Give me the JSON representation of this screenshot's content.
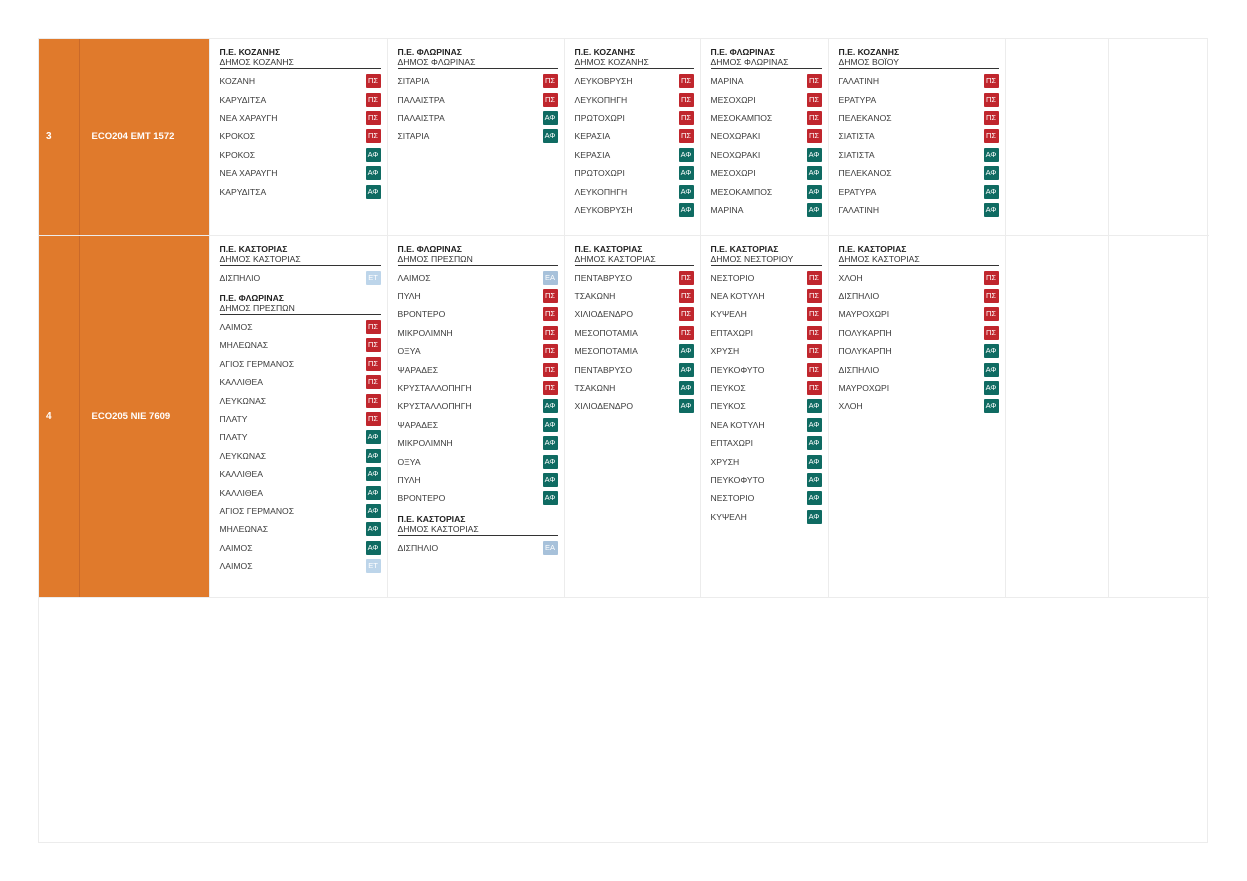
{
  "colors": {
    "orange": "#e07a2c",
    "ps": "#c0262d",
    "af": "#0f6b62",
    "et": "#bdd5ea",
    "ea": "#a7c1da"
  },
  "rows": [
    {
      "num": "3",
      "code": "ECO204  EMT 1572",
      "cells": [
        [
          {
            "pe": "Π.Ε. ΚΟΖΑΝΗΣ",
            "dimos": "ΔΗΜΟΣ ΚΟΖΑΝΗΣ",
            "items": [
              {
                "name": "ΚΟΖΑΝΗ",
                "tag": "ΠΣ"
              },
              {
                "name": "ΚΑΡΥΔΙΤΣΑ",
                "tag": "ΠΣ"
              },
              {
                "name": "ΝΕΑ ΧΑΡΑΥΓΗ",
                "tag": "ΠΣ"
              },
              {
                "name": "ΚΡΟΚΟΣ",
                "tag": "ΠΣ"
              },
              {
                "name": "ΚΡΟΚΟΣ",
                "tag": "ΑΦ"
              },
              {
                "name": "ΝΕΑ ΧΑΡΑΥΓΗ",
                "tag": "ΑΦ"
              },
              {
                "name": "ΚΑΡΥΔΙΤΣΑ",
                "tag": "ΑΦ"
              }
            ]
          }
        ],
        [
          {
            "pe": "Π.Ε. ΦΛΩΡΙΝΑΣ",
            "dimos": "ΔΗΜΟΣ ΦΛΩΡΙΝΑΣ",
            "items": [
              {
                "name": "ΣΙΤΑΡΙΑ",
                "tag": "ΠΣ"
              },
              {
                "name": "ΠΑΛΑΙΣΤΡΑ",
                "tag": "ΠΣ"
              },
              {
                "name": "ΠΑΛΑΙΣΤΡΑ",
                "tag": "ΑΦ"
              },
              {
                "name": "ΣΙΤΑΡΙΑ",
                "tag": "ΑΦ"
              }
            ]
          }
        ],
        [
          {
            "pe": "Π.Ε. ΚΟΖΑΝΗΣ",
            "dimos": "ΔΗΜΟΣ ΚΟΖΑΝΗΣ",
            "items": [
              {
                "name": "ΛΕΥΚΟΒΡΥΣΗ",
                "tag": "ΠΣ"
              },
              {
                "name": "ΛΕΥΚΟΠΗΓΗ",
                "tag": "ΠΣ"
              },
              {
                "name": "ΠΡΩΤΟΧΩΡΙ",
                "tag": "ΠΣ"
              },
              {
                "name": "ΚΕΡΑΣΙΑ",
                "tag": "ΠΣ"
              },
              {
                "name": "ΚΕΡΑΣΙΑ",
                "tag": "ΑΦ"
              },
              {
                "name": "ΠΡΩΤΟΧΩΡΙ",
                "tag": "ΑΦ"
              },
              {
                "name": "ΛΕΥΚΟΠΗΓΗ",
                "tag": "ΑΦ"
              },
              {
                "name": "ΛΕΥΚΟΒΡΥΣΗ",
                "tag": "ΑΦ"
              }
            ]
          }
        ],
        [
          {
            "pe": "Π.Ε. ΦΛΩΡΙΝΑΣ",
            "dimos": "ΔΗΜΟΣ ΦΛΩΡΙΝΑΣ",
            "items": [
              {
                "name": "ΜΑΡΙΝΑ",
                "tag": "ΠΣ"
              },
              {
                "name": "ΜΕΣΟΧΩΡΙ",
                "tag": "ΠΣ"
              },
              {
                "name": "ΜΕΣΟΚΑΜΠΟΣ",
                "tag": "ΠΣ"
              },
              {
                "name": "ΝΕΟΧΩΡΑΚΙ",
                "tag": "ΠΣ"
              },
              {
                "name": "ΝΕΟΧΩΡΑΚΙ",
                "tag": "ΑΦ"
              },
              {
                "name": "ΜΕΣΟΧΩΡΙ",
                "tag": "ΑΦ"
              },
              {
                "name": "ΜΕΣΟΚΑΜΠΟΣ",
                "tag": "ΑΦ"
              },
              {
                "name": "ΜΑΡΙΝΑ",
                "tag": "ΑΦ"
              }
            ]
          }
        ],
        [
          {
            "pe": "Π.Ε. ΚΟΖΑΝΗΣ",
            "dimos": "ΔΗΜΟΣ ΒΟΪΟΥ",
            "items": [
              {
                "name": "ΓΑΛΑΤΙΝΗ",
                "tag": "ΠΣ"
              },
              {
                "name": "ΕΡΑΤΥΡΑ",
                "tag": "ΠΣ"
              },
              {
                "name": "ΠΕΛΕΚΑΝΟΣ",
                "tag": "ΠΣ"
              },
              {
                "name": "ΣΙΑΤΙΣΤΑ",
                "tag": "ΠΣ"
              },
              {
                "name": "ΣΙΑΤΙΣΤΑ",
                "tag": "ΑΦ"
              },
              {
                "name": "ΠΕΛΕΚΑΝΟΣ",
                "tag": "ΑΦ"
              },
              {
                "name": "ΕΡΑΤΥΡΑ",
                "tag": "ΑΦ"
              },
              {
                "name": "ΓΑΛΑΤΙΝΗ",
                "tag": "ΑΦ"
              }
            ]
          }
        ],
        [],
        []
      ]
    },
    {
      "num": "4",
      "code": "ECO205  NIE 7609",
      "cells": [
        [
          {
            "pe": "Π.Ε. ΚΑΣΤΟΡΙΑΣ",
            "dimos": "ΔΗΜΟΣ ΚΑΣΤΟΡΙΑΣ",
            "items": [
              {
                "name": "ΔΙΣΠΗΛΙΟ",
                "tag": "ΕΤ"
              }
            ]
          },
          {
            "pe": "Π.Ε. ΦΛΩΡΙΝΑΣ",
            "dimos": "ΔΗΜΟΣ ΠΡΕΣΠΩΝ",
            "items": [
              {
                "name": "ΛΑΙΜΟΣ",
                "tag": "ΠΣ"
              },
              {
                "name": "ΜΗΛΕΩΝΑΣ",
                "tag": "ΠΣ"
              },
              {
                "name": "ΑΓΙΟΣ ΓΕΡΜΑΝΟΣ",
                "tag": "ΠΣ"
              },
              {
                "name": "ΚΑΛΛΙΘΕΑ",
                "tag": "ΠΣ"
              },
              {
                "name": "ΛΕΥΚΩΝΑΣ",
                "tag": "ΠΣ"
              },
              {
                "name": "ΠΛΑΤΥ",
                "tag": "ΠΣ"
              },
              {
                "name": "ΠΛΑΤΥ",
                "tag": "ΑΦ"
              },
              {
                "name": "ΛΕΥΚΩΝΑΣ",
                "tag": "ΑΦ"
              },
              {
                "name": "ΚΑΛΛΙΘΕΑ",
                "tag": "ΑΦ"
              },
              {
                "name": "ΚΑΛΛΙΘΕΑ",
                "tag": "ΑΦ"
              },
              {
                "name": "ΑΓΙΟΣ ΓΕΡΜΑΝΟΣ",
                "tag": "ΑΦ"
              },
              {
                "name": "ΜΗΛΕΩΝΑΣ",
                "tag": "ΑΦ"
              },
              {
                "name": "ΛΑΙΜΟΣ",
                "tag": "ΑΦ"
              },
              {
                "name": "ΛΑΙΜΟΣ",
                "tag": "ΕΤ"
              }
            ]
          }
        ],
        [
          {
            "pe": "Π.Ε. ΦΛΩΡΙΝΑΣ",
            "dimos": "ΔΗΜΟΣ ΠΡΕΣΠΩΝ",
            "items": [
              {
                "name": "ΛΑΙΜΟΣ",
                "tag": "ΕΑ"
              },
              {
                "name": "ΠΥΛΗ",
                "tag": "ΠΣ"
              },
              {
                "name": "ΒΡΟΝΤΕΡΟ",
                "tag": "ΠΣ"
              },
              {
                "name": "ΜΙΚΡΟΛΙΜΝΗ",
                "tag": "ΠΣ"
              },
              {
                "name": "ΟΞΥΑ",
                "tag": "ΠΣ"
              },
              {
                "name": "ΨΑΡΑΔΕΣ",
                "tag": "ΠΣ"
              },
              {
                "name": "ΚΡΥΣΤΑΛΛΟΠΗΓΗ",
                "tag": "ΠΣ"
              },
              {
                "name": "ΚΡΥΣΤΑΛΛΟΠΗΓΗ",
                "tag": "ΑΦ"
              },
              {
                "name": "ΨΑΡΑΔΕΣ",
                "tag": "ΑΦ"
              },
              {
                "name": "ΜΙΚΡΟΛΙΜΝΗ",
                "tag": "ΑΦ"
              },
              {
                "name": "ΟΞΥΑ",
                "tag": "ΑΦ"
              },
              {
                "name": "ΠΥΛΗ",
                "tag": "ΑΦ"
              },
              {
                "name": "ΒΡΟΝΤΕΡΟ",
                "tag": "ΑΦ"
              }
            ]
          },
          {
            "pe": "Π.Ε. ΚΑΣΤΟΡΙΑΣ",
            "dimos": "ΔΗΜΟΣ ΚΑΣΤΟΡΙΑΣ",
            "items": [
              {
                "name": "ΔΙΣΠΗΛΙΟ",
                "tag": "ΕΑ"
              }
            ]
          }
        ],
        [
          {
            "pe": "Π.Ε. ΚΑΣΤΟΡΙΑΣ",
            "dimos": "ΔΗΜΟΣ ΚΑΣΤΟΡΙΑΣ",
            "items": [
              {
                "name": "ΠΕΝΤΑΒΡΥΣΟ",
                "tag": "ΠΣ"
              },
              {
                "name": "ΤΣΑΚΩΝΗ",
                "tag": "ΠΣ"
              },
              {
                "name": "ΧΙΛΙΟΔΕΝΔΡΟ",
                "tag": "ΠΣ"
              },
              {
                "name": "ΜΕΣΟΠΟΤΑΜΙΑ",
                "tag": "ΠΣ"
              },
              {
                "name": "ΜΕΣΟΠΟΤΑΜΙΑ",
                "tag": "ΑΦ"
              },
              {
                "name": "ΠΕΝΤΑΒΡΥΣΟ",
                "tag": "ΑΦ"
              },
              {
                "name": "ΤΣΑΚΩΝΗ",
                "tag": "ΑΦ"
              },
              {
                "name": "ΧΙΛΙΟΔΕΝΔΡΟ",
                "tag": "ΑΦ"
              }
            ]
          }
        ],
        [
          {
            "pe": "Π.Ε. ΚΑΣΤΟΡΙΑΣ",
            "dimos": "ΔΗΜΟΣ ΝΕΣΤΟΡΙΟΥ",
            "items": [
              {
                "name": "ΝΕΣΤΟΡΙΟ",
                "tag": "ΠΣ"
              },
              {
                "name": "ΝΕΑ ΚΟΤΥΛΗ",
                "tag": "ΠΣ"
              },
              {
                "name": "ΚΥΨΕΛΗ",
                "tag": "ΠΣ"
              },
              {
                "name": "ΕΠΤΑΧΩΡΙ",
                "tag": "ΠΣ"
              },
              {
                "name": "ΧΡΥΣΗ",
                "tag": "ΠΣ"
              },
              {
                "name": "ΠΕΥΚΟΦΥΤΟ",
                "tag": "ΠΣ"
              },
              {
                "name": "ΠΕΥΚΟΣ",
                "tag": "ΠΣ"
              },
              {
                "name": "ΠΕΥΚΟΣ",
                "tag": "ΑΦ"
              },
              {
                "name": "ΝΕΑ ΚΟΤΥΛΗ",
                "tag": "ΑΦ"
              },
              {
                "name": "ΕΠΤΑΧΩΡΙ",
                "tag": "ΑΦ"
              },
              {
                "name": "ΧΡΥΣΗ",
                "tag": "ΑΦ"
              },
              {
                "name": "ΠΕΥΚΟΦΥΤΟ",
                "tag": "ΑΦ"
              },
              {
                "name": "ΝΕΣΤΟΡΙΟ",
                "tag": "ΑΦ"
              },
              {
                "name": "ΚΥΨΕΛΗ",
                "tag": "ΑΦ"
              }
            ]
          }
        ],
        [
          {
            "pe": "Π.Ε. ΚΑΣΤΟΡΙΑΣ",
            "dimos": "ΔΗΜΟΣ ΚΑΣΤΟΡΙΑΣ",
            "items": [
              {
                "name": "ΧΛΟΗ",
                "tag": "ΠΣ"
              },
              {
                "name": "ΔΙΣΠΗΛΙΟ",
                "tag": "ΠΣ"
              },
              {
                "name": "ΜΑΥΡΟΧΩΡΙ",
                "tag": "ΠΣ"
              },
              {
                "name": "ΠΟΛΥΚΑΡΠΗ",
                "tag": "ΠΣ"
              },
              {
                "name": "ΠΟΛΥΚΑΡΠΗ",
                "tag": "ΑΦ"
              },
              {
                "name": "ΔΙΣΠΗΛΙΟ",
                "tag": "ΑΦ"
              },
              {
                "name": "ΜΑΥΡΟΧΩΡΙ",
                "tag": "ΑΦ"
              },
              {
                "name": "ΧΛΟΗ",
                "tag": "ΑΦ"
              }
            ]
          }
        ],
        [],
        []
      ]
    }
  ]
}
